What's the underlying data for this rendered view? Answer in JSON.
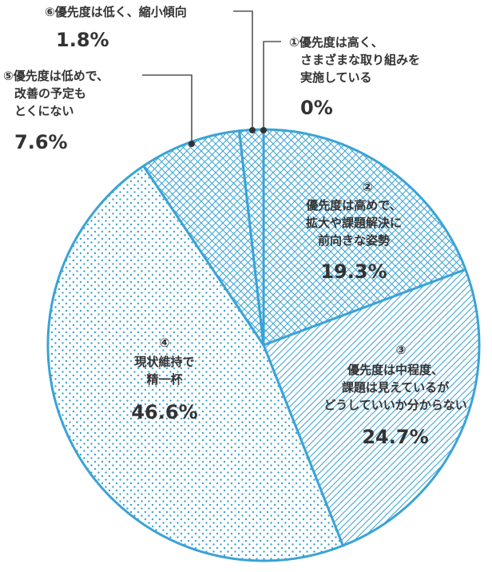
{
  "chart_data": {
    "type": "pie",
    "colors": {
      "accent": "#3aa3d6",
      "text": "#333333",
      "leader": "#555555",
      "background": "#ffffff"
    },
    "slices": [
      {
        "name_lines": [
          "①優先度は高く、",
          "さまざまな取り組みを",
          "実施している"
        ],
        "value": 0,
        "value_label": "0%",
        "pattern": "none"
      },
      {
        "name_lines": [
          "②",
          "優先度は高めで、",
          "拡大や課題解決に",
          "前向きな姿勢"
        ],
        "value": 19.3,
        "value_label": "19.3%",
        "pattern": "crosshatch"
      },
      {
        "name_lines": [
          "③",
          "優先度は中程度、",
          "課題は見えているが",
          "どうしていいか分からない"
        ],
        "value": 24.7,
        "value_label": "24.7%",
        "pattern": "diagonal"
      },
      {
        "name_lines": [
          "④",
          "現状維持で",
          "精一杯"
        ],
        "value": 46.6,
        "value_label": "46.6%",
        "pattern": "dots"
      },
      {
        "name_lines": [
          "⑤優先度は低めで、",
          "改善の予定も",
          "とくにない"
        ],
        "value": 7.6,
        "value_label": "7.6%",
        "pattern": "crosshatch"
      },
      {
        "name_lines": [
          "⑥優先度は低く、縮小傾向"
        ],
        "value": 1.8,
        "value_label": "1.8%",
        "pattern": "crosshatch"
      }
    ]
  }
}
